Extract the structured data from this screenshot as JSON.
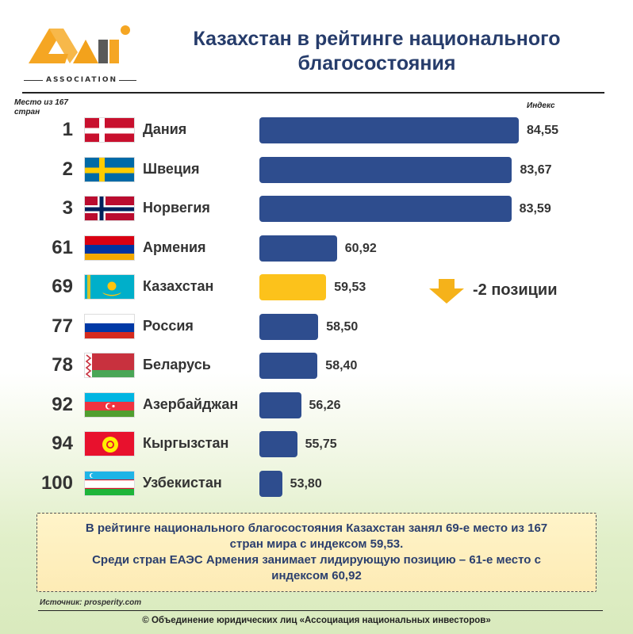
{
  "brand": {
    "logo_text": "ASSOCIATION",
    "colors": {
      "orange": "#f5a623",
      "dark": "#5a5a5a"
    }
  },
  "header": {
    "title_line1": "Казахстан в рейтинге национального",
    "title_line2": "благосостояния"
  },
  "columns": {
    "rank_label_line1": "Место из 167",
    "rank_label_line2": "стран",
    "index_label": "Индекс"
  },
  "chart_data": {
    "type": "bar",
    "orientation": "horizontal",
    "categories": [
      "Дания",
      "Швеция",
      "Норвегия",
      "Армения",
      "Казахстан",
      "Россия",
      "Беларусь",
      "Азербайджан",
      "Кыргызстан",
      "Узбекистан"
    ],
    "ranks": [
      "1",
      "2",
      "3",
      "61",
      "69",
      "77",
      "78",
      "92",
      "94",
      "100"
    ],
    "values": [
      84.55,
      83.67,
      83.59,
      60.92,
      59.53,
      58.5,
      58.4,
      56.26,
      55.75,
      53.8
    ],
    "value_labels": [
      "84,55",
      "83,67",
      "83,59",
      "60,92",
      "59,53",
      "58,50",
      "58,40",
      "56,26",
      "55,75",
      "53,80"
    ],
    "highlight": "Казахстан",
    "colors": {
      "default": "#2e4d8e",
      "highlight": "#fcc21b"
    },
    "annotation": {
      "arrow": "down-arrow",
      "arrow_color": "#f5b21a",
      "text": "-2 позиции"
    }
  },
  "note": {
    "line1": "В рейтинге национального благосостояния Казахстан занял 69-е место из 167",
    "line2": "стран мира с индексом 59,53.",
    "line3": "Среди стран ЕАЭС Армения занимает лидирующую позицию – 61-е место с",
    "line4": "индексом 60,92"
  },
  "footer": {
    "source": "Источник:  prosperity.com",
    "copyright": "© Объединение юридических лиц «Ассоциация национальных инвесторов»"
  }
}
